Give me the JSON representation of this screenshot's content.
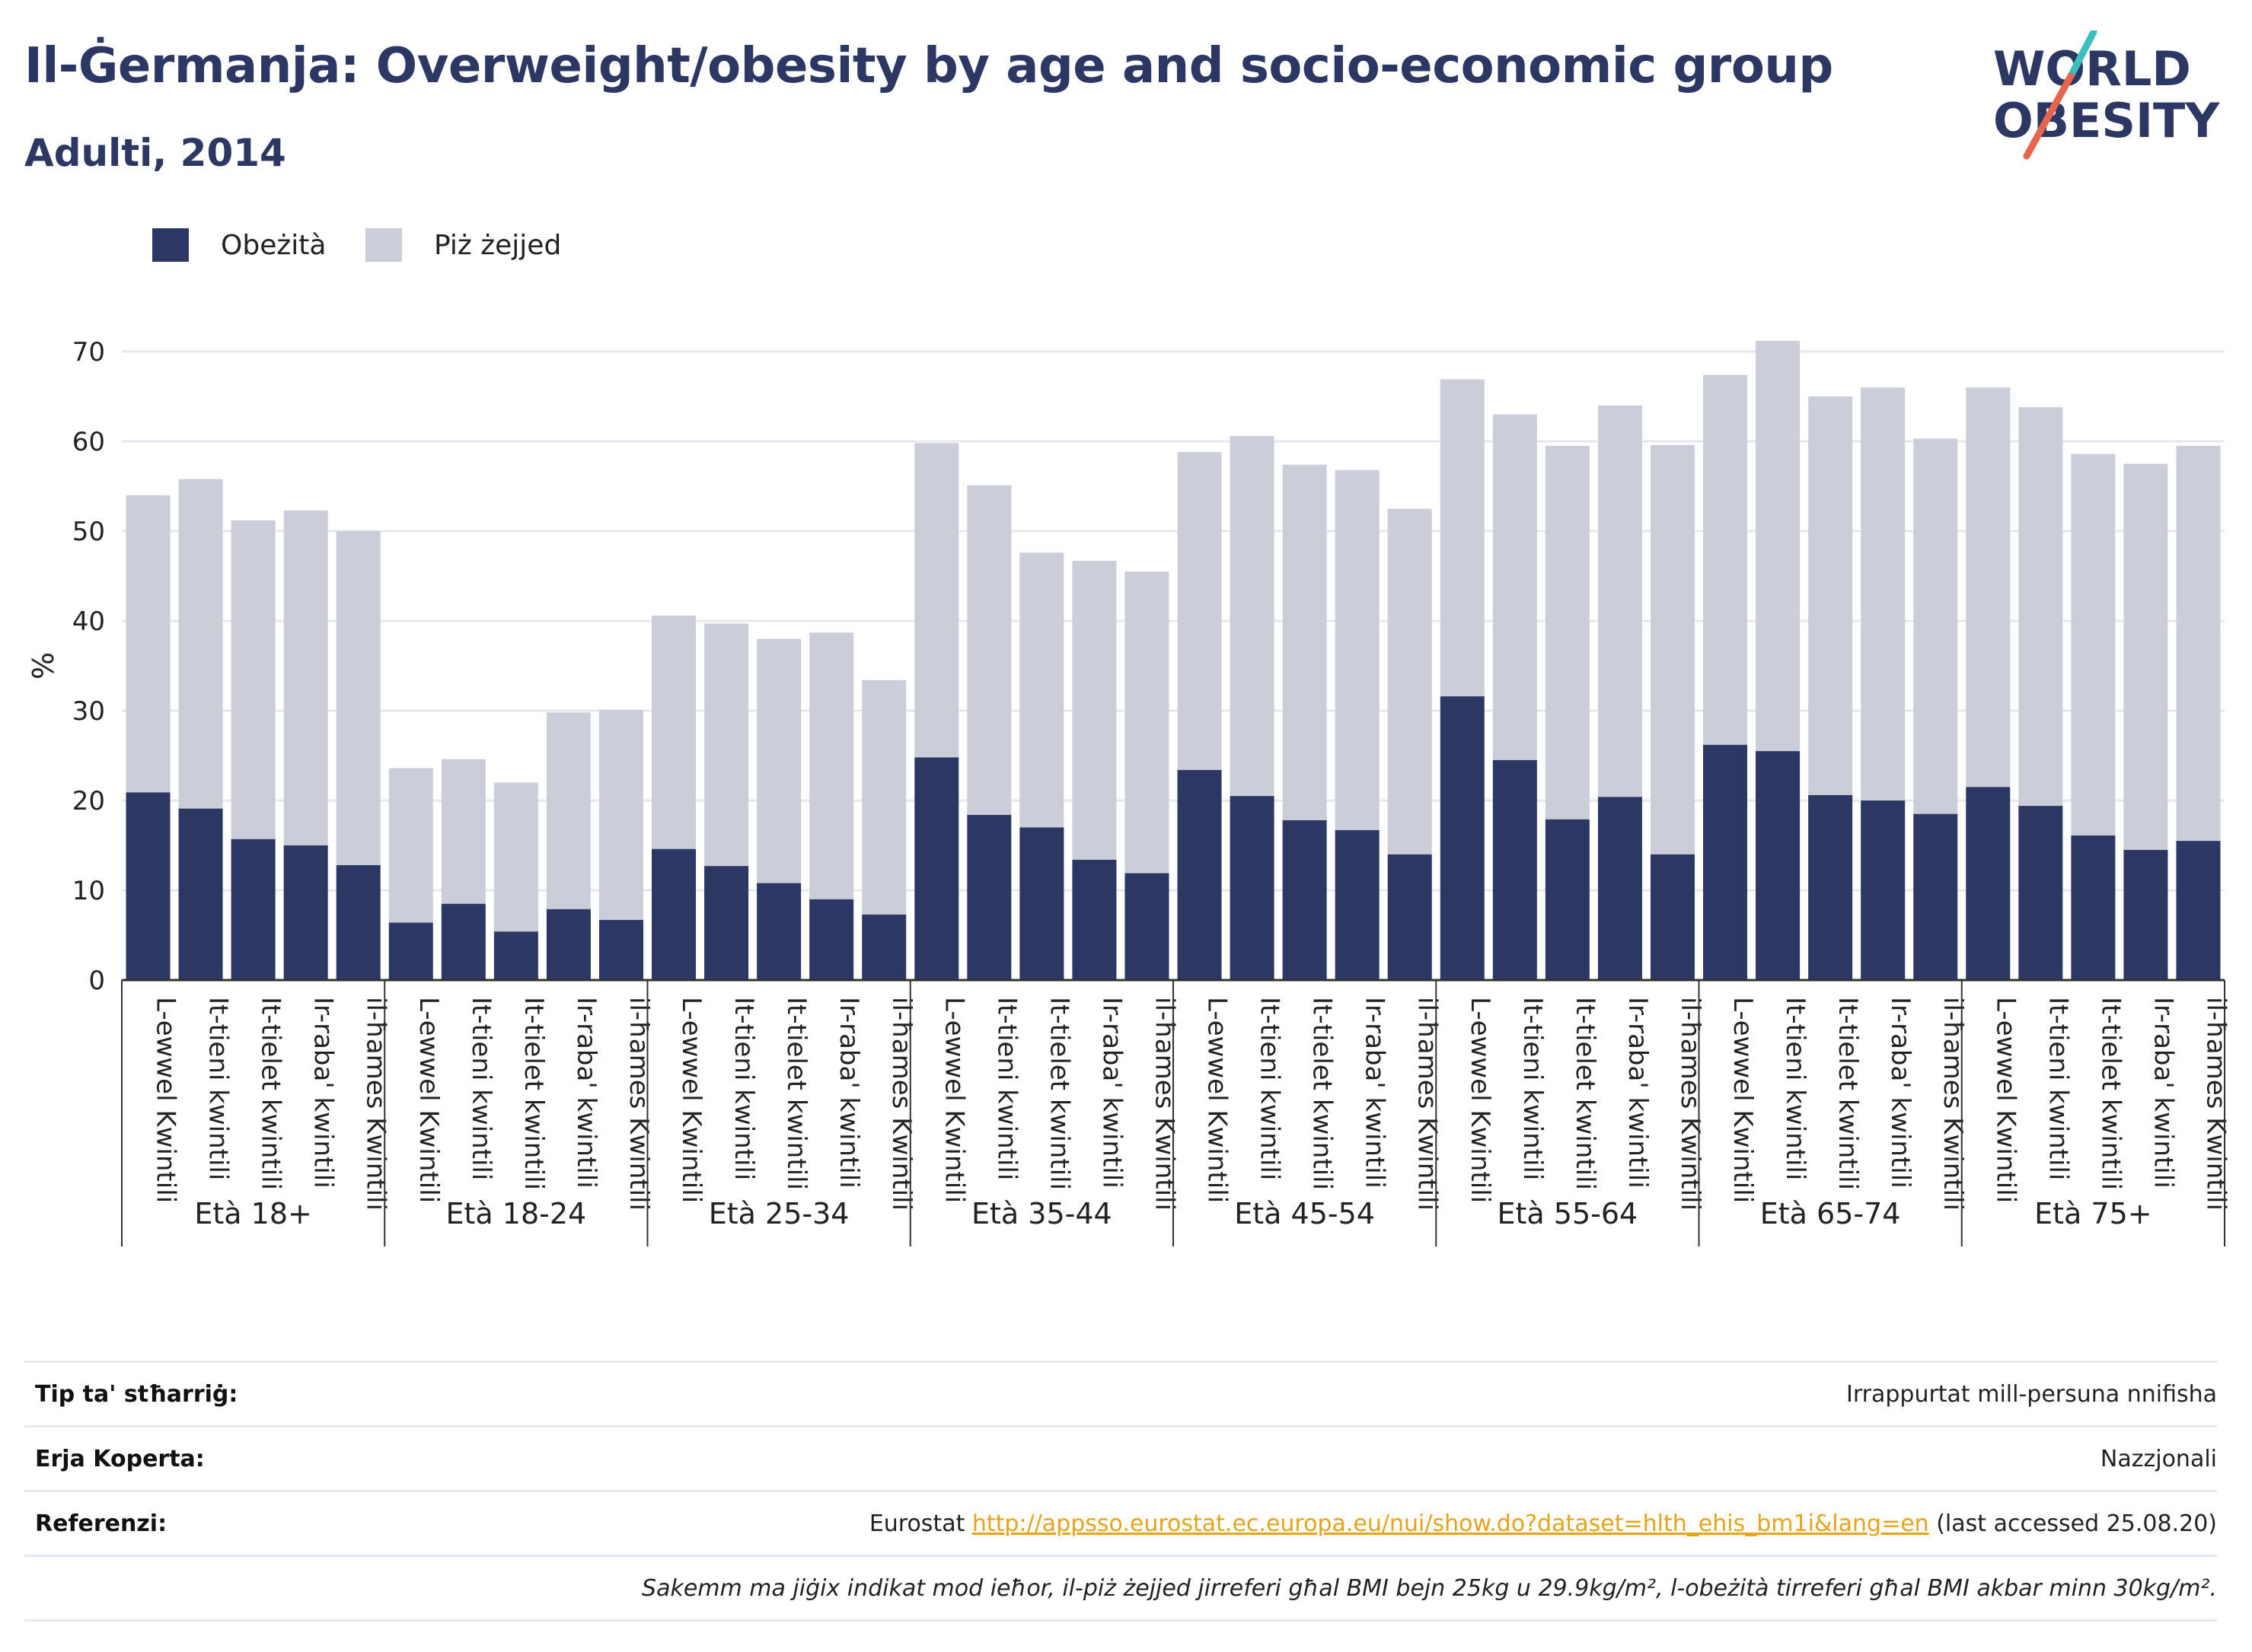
{
  "header": {
    "title": "Il-Ġermanja: Overweight/obesity by age and socio-economic group",
    "subtitle": "Adulti, 2014"
  },
  "logo": {
    "line1": "WORLD",
    "line2": "OBESITY",
    "colors": {
      "text": "#2c3763",
      "slash_red": "#e5654e",
      "slash_teal": "#3bbfbf"
    }
  },
  "legend": {
    "items": [
      {
        "label": "Obeżità",
        "color": "#2c3763"
      },
      {
        "label": "Piż żejjed",
        "color": "#cbcdd9"
      }
    ]
  },
  "chart_data": {
    "type": "bar",
    "stacked": true,
    "title": "Il-Ġermanja: Overweight/obesity by age and socio-economic group",
    "subtitle": "Adulti, 2014",
    "ylabel": "%",
    "xlabel": "",
    "ylim": [
      0,
      70
    ],
    "yticks": [
      0,
      10,
      20,
      30,
      40,
      50,
      60,
      70
    ],
    "grid": true,
    "legend_position": "top-left",
    "groups": [
      {
        "label": "Età 18+",
        "categories": [
          "L-ewwel Kwintili",
          "It-tieni kwintili",
          "It-tielet kwintili",
          "Ir-raba' kwintili",
          "il-ħames Kwintili"
        ]
      },
      {
        "label": "Età 18-24",
        "categories": [
          "L-ewwel Kwintili",
          "It-tieni kwintili",
          "It-tielet kwintili",
          "Ir-raba' kwintili",
          "il-ħames Kwintili"
        ]
      },
      {
        "label": "Età 25-34",
        "categories": [
          "L-ewwel Kwintili",
          "It-tieni kwintili",
          "It-tielet kwintili",
          "Ir-raba' kwintili",
          "il-ħames Kwintili"
        ]
      },
      {
        "label": "Età 35-44",
        "categories": [
          "L-ewwel Kwintili",
          "It-tieni kwintili",
          "It-tielet kwintili",
          "Ir-raba' kwintili",
          "il-ħames Kwintili"
        ]
      },
      {
        "label": "Età 45-54",
        "categories": [
          "L-ewwel Kwintili",
          "It-tieni kwintili",
          "It-tielet kwintili",
          "Ir-raba' kwintili",
          "il-ħames Kwintili"
        ]
      },
      {
        "label": "Età 55-64",
        "categories": [
          "L-ewwel Kwintili",
          "It-tieni kwintili",
          "It-tielet kwintili",
          "Ir-raba' kwintili",
          "il-ħames Kwintili"
        ]
      },
      {
        "label": "Età 65-74",
        "categories": [
          "L-ewwel Kwintili",
          "It-tieni kwintili",
          "It-tielet kwintili",
          "Ir-raba' kwintili",
          "il-ħames Kwintili"
        ]
      },
      {
        "label": "Età 75+",
        "categories": [
          "L-ewwel Kwintili",
          "It-tieni kwintili",
          "It-tielet kwintili",
          "Ir-raba' kwintili",
          "il-ħames Kwintili"
        ]
      }
    ],
    "series": [
      {
        "name": "Obeżità",
        "color": "#2c3763",
        "values": [
          20.9,
          19.1,
          15.7,
          15.0,
          12.8,
          6.4,
          8.5,
          5.4,
          7.9,
          6.7,
          14.6,
          12.7,
          10.8,
          9.0,
          7.3,
          24.8,
          18.4,
          17.0,
          13.4,
          11.9,
          23.4,
          20.5,
          17.8,
          16.7,
          14.0,
          31.6,
          24.5,
          17.9,
          20.4,
          14.0,
          26.2,
          25.5,
          20.6,
          20.0,
          18.5,
          21.5,
          19.4,
          16.1,
          14.5,
          15.5
        ]
      },
      {
        "name": "Piż żejjed",
        "color": "#cbcdd9",
        "values": [
          33.1,
          36.7,
          35.5,
          37.3,
          37.2,
          17.2,
          16.1,
          16.6,
          21.9,
          23.4,
          26.0,
          27.0,
          27.2,
          29.7,
          26.1,
          35.0,
          36.7,
          30.6,
          33.3,
          33.6,
          35.4,
          40.1,
          39.6,
          40.1,
          38.5,
          35.3,
          38.5,
          41.6,
          43.6,
          45.6,
          41.2,
          45.7,
          44.4,
          46.0,
          41.8,
          44.5,
          44.4,
          42.5,
          43.0,
          44.0
        ]
      }
    ]
  },
  "info": {
    "rows": [
      {
        "key": "Tip ta' stħarriġ:",
        "value": "Irrappurtat mill-persuna nnifisha"
      },
      {
        "key": "Erja Koperta:",
        "value": "Nazzjonali"
      },
      {
        "key": "Referenzi:",
        "prefix": "Eurostat ",
        "link": "http://appsso.eurostat.ec.europa.eu/nui/show.do?dataset=hlth_ehis_bm1i&lang=en",
        "suffix": " (last accessed 25.08.20)"
      }
    ],
    "note": "Sakemm ma jiġix indikat mod ieħor, il-piż żejjed jirreferi għal BMI bejn 25kg u 29.9kg/m², l-obeżità tirreferi għal BMI akbar minn 30kg/m²."
  }
}
